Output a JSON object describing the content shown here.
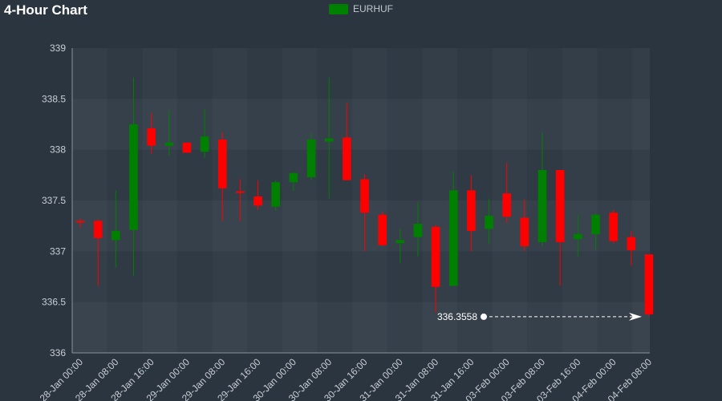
{
  "chart_data": {
    "type": "candlestick",
    "title": "4-Hour Chart",
    "legend": {
      "label": "EURHUF",
      "placement": "top-center"
    },
    "colors": {
      "background": "#2b3540",
      "up": "#008000",
      "down": "#ff0000",
      "axis": "#8a949e",
      "tick_text": "#c8ced4",
      "annotation": "#ffffff"
    },
    "ylim": [
      336,
      339
    ],
    "yticks": [
      336,
      336.5,
      337,
      337.5,
      338,
      338.5,
      339
    ],
    "ytick_labels": [
      "336",
      "336.5",
      "337",
      "337.5",
      "338",
      "338.5",
      "339"
    ],
    "xtick_labels": [
      "28-Jan 00:00",
      "28-Jan 08:00",
      "28-Jan 16:00",
      "29-Jan 00:00",
      "29-Jan 08:00",
      "29-Jan 16:00",
      "30-Jan 00:00",
      "30-Jan 08:00",
      "30-Jan 16:00",
      "31-Jan 00:00",
      "31-Jan 08:00",
      "31-Jan 16:00",
      "03-Feb 00:00",
      "03-Feb 08:00",
      "03-Feb 16:00",
      "04-Feb 00:00",
      "04-Feb 08:00"
    ],
    "candles": [
      {
        "o": 337.3,
        "h": 337.32,
        "l": 337.23,
        "c": 337.29
      },
      {
        "o": 337.3,
        "h": 337.31,
        "l": 336.66,
        "c": 337.13
      },
      {
        "o": 337.11,
        "h": 337.6,
        "l": 336.84,
        "c": 337.2
      },
      {
        "o": 337.21,
        "h": 338.71,
        "l": 336.76,
        "c": 338.25
      },
      {
        "o": 338.21,
        "h": 338.36,
        "l": 337.96,
        "c": 338.04
      },
      {
        "o": 338.04,
        "h": 338.39,
        "l": 337.94,
        "c": 338.07
      },
      {
        "o": 338.07,
        "h": 338.07,
        "l": 337.98,
        "c": 337.97
      },
      {
        "o": 337.98,
        "h": 338.4,
        "l": 337.92,
        "c": 338.13
      },
      {
        "o": 338.1,
        "h": 338.17,
        "l": 337.3,
        "c": 337.62
      },
      {
        "o": 337.59,
        "h": 337.71,
        "l": 337.3,
        "c": 337.58
      },
      {
        "o": 337.54,
        "h": 337.7,
        "l": 337.41,
        "c": 337.45
      },
      {
        "o": 337.44,
        "h": 337.7,
        "l": 337.4,
        "c": 337.68
      },
      {
        "o": 337.68,
        "h": 337.78,
        "l": 337.59,
        "c": 337.77
      },
      {
        "o": 337.73,
        "h": 338.16,
        "l": 337.7,
        "c": 338.1
      },
      {
        "o": 338.08,
        "h": 338.71,
        "l": 337.52,
        "c": 338.11
      },
      {
        "o": 338.12,
        "h": 338.46,
        "l": 337.7,
        "c": 337.7
      },
      {
        "o": 337.71,
        "h": 337.76,
        "l": 337.0,
        "c": 337.38
      },
      {
        "o": 337.36,
        "h": 337.39,
        "l": 337.05,
        "c": 337.06
      },
      {
        "o": 337.08,
        "h": 337.22,
        "l": 336.88,
        "c": 337.11
      },
      {
        "o": 337.14,
        "h": 337.48,
        "l": 336.95,
        "c": 337.27
      },
      {
        "o": 337.24,
        "h": 337.26,
        "l": 336.4,
        "c": 336.65
      },
      {
        "o": 336.66,
        "h": 337.78,
        "l": 336.66,
        "c": 337.6
      },
      {
        "o": 337.6,
        "h": 337.75,
        "l": 337.0,
        "c": 337.2
      },
      {
        "o": 337.22,
        "h": 337.52,
        "l": 337.07,
        "c": 337.35
      },
      {
        "o": 337.57,
        "h": 337.87,
        "l": 337.28,
        "c": 337.34
      },
      {
        "o": 337.33,
        "h": 337.51,
        "l": 337.0,
        "c": 337.05
      },
      {
        "o": 337.09,
        "h": 338.17,
        "l": 337.05,
        "c": 337.8
      },
      {
        "o": 337.8,
        "h": 337.8,
        "l": 336.66,
        "c": 337.09
      },
      {
        "o": 337.12,
        "h": 337.36,
        "l": 336.95,
        "c": 337.17
      },
      {
        "o": 337.17,
        "h": 337.37,
        "l": 337.02,
        "c": 337.36
      },
      {
        "o": 337.38,
        "h": 337.41,
        "l": 337.08,
        "c": 337.1
      },
      {
        "o": 337.14,
        "h": 337.2,
        "l": 336.86,
        "c": 337.01
      },
      {
        "o": 336.97,
        "h": 336.97,
        "l": 336.36,
        "c": 336.38
      }
    ],
    "annotation": {
      "label": "336.3558",
      "value": 336.3558
    },
    "grid": true
  }
}
